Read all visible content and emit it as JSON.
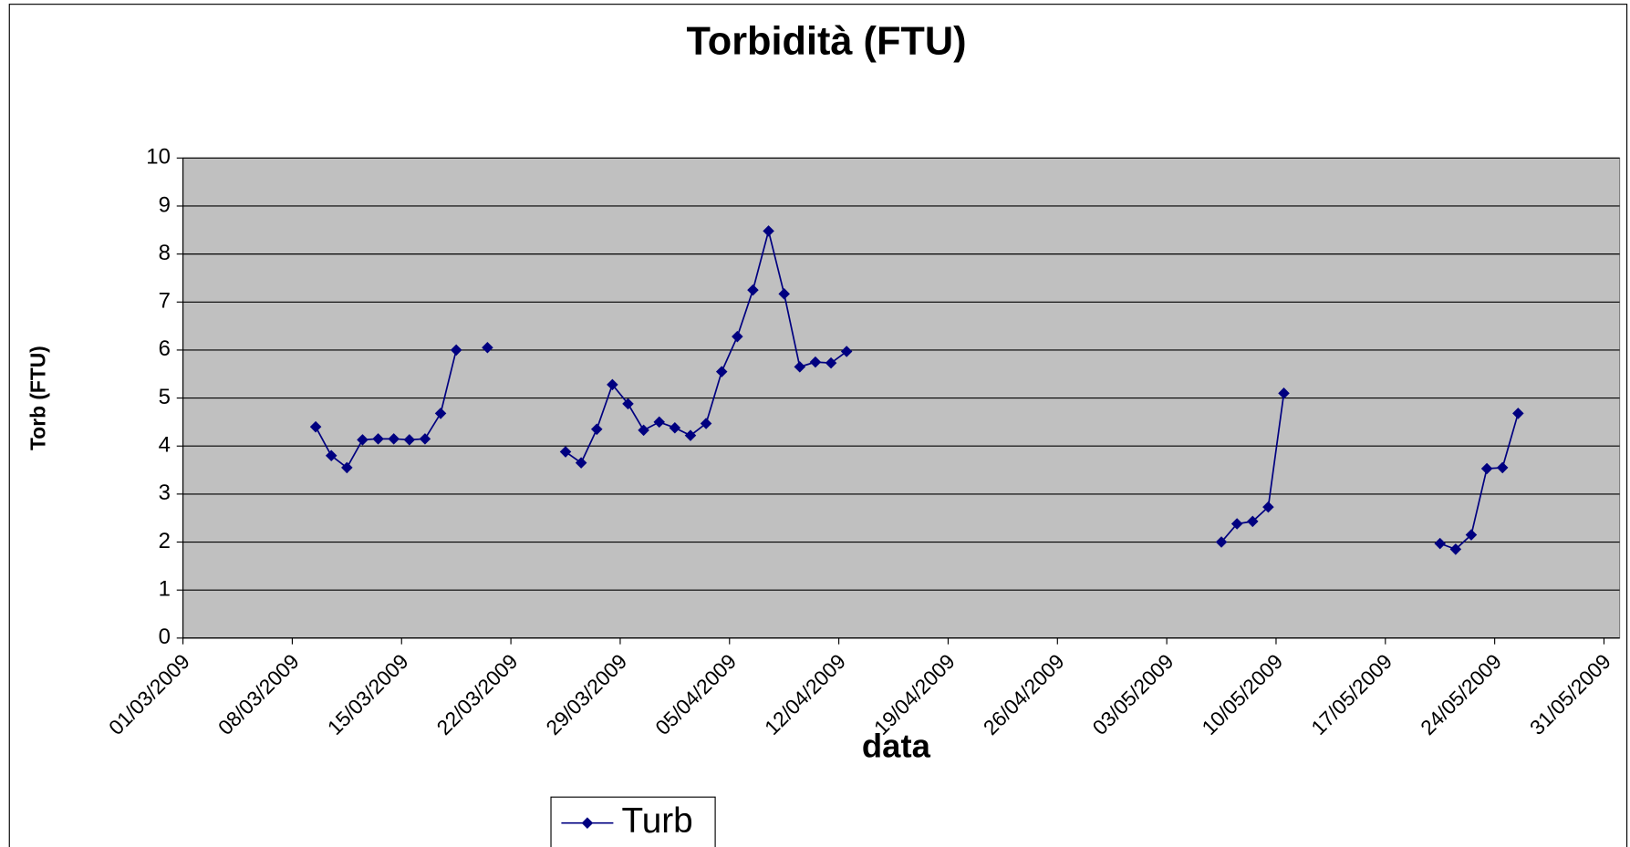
{
  "chart_data": {
    "type": "line",
    "title": "Torbidità (FTU)",
    "x_label": "data",
    "y_label": "Torb (FTU)",
    "x": [
      "2009-03-09",
      "2009-03-10",
      "2009-03-11",
      "2009-03-12",
      "2009-03-13",
      "2009-03-14",
      "2009-03-15",
      "2009-03-16",
      "2009-03-17",
      "2009-03-18",
      "2009-03-19",
      "2009-03-20",
      "2009-03-21",
      "2009-03-25",
      "2009-03-26",
      "2009-03-27",
      "2009-03-28",
      "2009-03-29",
      "2009-03-30",
      "2009-03-31",
      "2009-04-01",
      "2009-04-02",
      "2009-04-03",
      "2009-04-04",
      "2009-04-05",
      "2009-04-06",
      "2009-04-07",
      "2009-04-08",
      "2009-04-09",
      "2009-04-10",
      "2009-04-11",
      "2009-04-12",
      "2009-04-13",
      "2009-05-06",
      "2009-05-07",
      "2009-05-08",
      "2009-05-09",
      "2009-05-10",
      "2009-05-11",
      "2009-05-20",
      "2009-05-21",
      "2009-05-22",
      "2009-05-23",
      "2009-05-24",
      "2009-05-25"
    ],
    "series": [
      {
        "name": "Turb",
        "color": "#000080",
        "values": [
          4.4,
          3.8,
          3.55,
          4.13,
          4.15,
          4.15,
          4.13,
          4.15,
          4.68,
          6.0,
          null,
          6.05,
          null,
          3.88,
          3.65,
          4.35,
          5.28,
          4.88,
          4.33,
          4.5,
          4.38,
          4.22,
          4.47,
          5.55,
          6.28,
          7.25,
          8.48,
          7.17,
          5.65,
          5.75,
          5.73,
          5.97,
          null,
          2.0,
          2.38,
          2.43,
          2.73,
          5.1,
          null,
          1.97,
          1.85,
          2.15,
          3.53,
          3.55,
          4.68
        ]
      }
    ],
    "xlim": [
      "2009-03-01",
      "2009-06-01"
    ],
    "xticks": [
      {
        "value": "2009-03-01",
        "label": "01/03/2009"
      },
      {
        "value": "2009-03-08",
        "label": "08/03/2009"
      },
      {
        "value": "2009-03-15",
        "label": "15/03/2009"
      },
      {
        "value": "2009-03-22",
        "label": "22/03/2009"
      },
      {
        "value": "2009-03-29",
        "label": "29/03/2009"
      },
      {
        "value": "2009-04-05",
        "label": "05/04/2009"
      },
      {
        "value": "2009-04-12",
        "label": "12/04/2009"
      },
      {
        "value": "2009-04-19",
        "label": "19/04/2009"
      },
      {
        "value": "2009-04-26",
        "label": "26/04/2009"
      },
      {
        "value": "2009-05-03",
        "label": "03/05/2009"
      },
      {
        "value": "2009-05-10",
        "label": "10/05/2009"
      },
      {
        "value": "2009-05-17",
        "label": "17/05/2009"
      },
      {
        "value": "2009-05-24",
        "label": "24/05/2009"
      },
      {
        "value": "2009-05-31",
        "label": "31/05/2009"
      }
    ],
    "ylim": [
      0,
      10
    ],
    "yticks": [
      0,
      1,
      2,
      3,
      4,
      5,
      6,
      7,
      8,
      9,
      10
    ],
    "grid": true,
    "plot_background": "#c0c0c0",
    "legend": "bottom"
  }
}
